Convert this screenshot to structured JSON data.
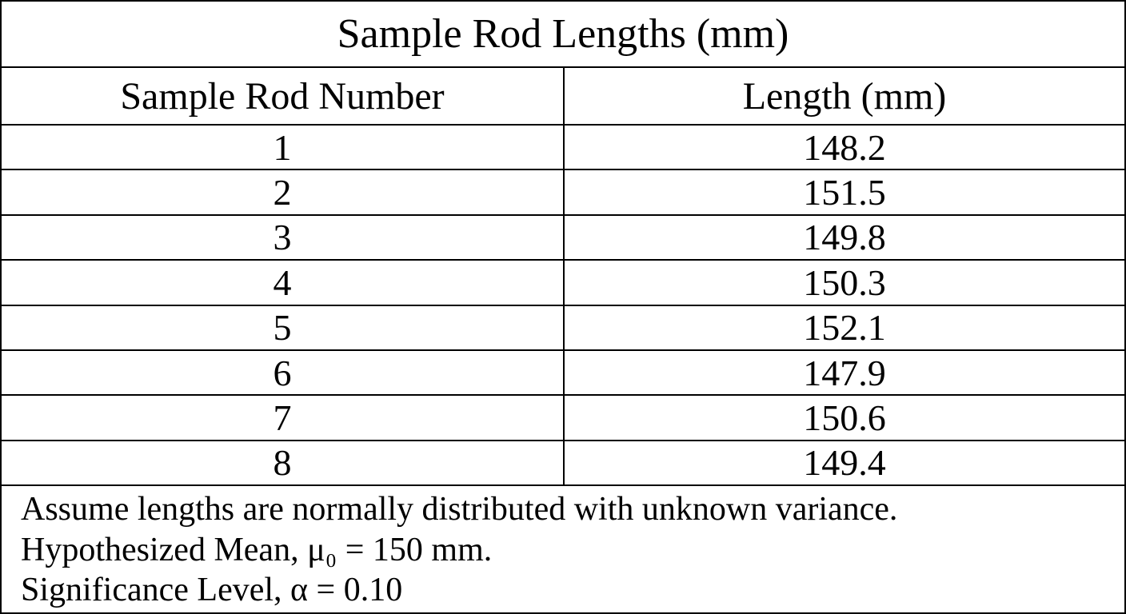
{
  "table": {
    "title": "Sample Rod Lengths (mm)",
    "headers": [
      "Sample Rod Number",
      "Length (mm)"
    ],
    "rows": [
      [
        1,
        148.2
      ],
      [
        2,
        151.5
      ],
      [
        3,
        149.8
      ],
      [
        4,
        150.3
      ],
      [
        5,
        152.1
      ],
      [
        6,
        147.9
      ],
      [
        7,
        150.6
      ],
      [
        8,
        149.4
      ]
    ]
  },
  "notes": [
    "Assume lengths are normally distributed with unknown variance.",
    "Hypothesized Mean, μ₀ = 150 mm.",
    "Significance Level, α = 0.10"
  ]
}
